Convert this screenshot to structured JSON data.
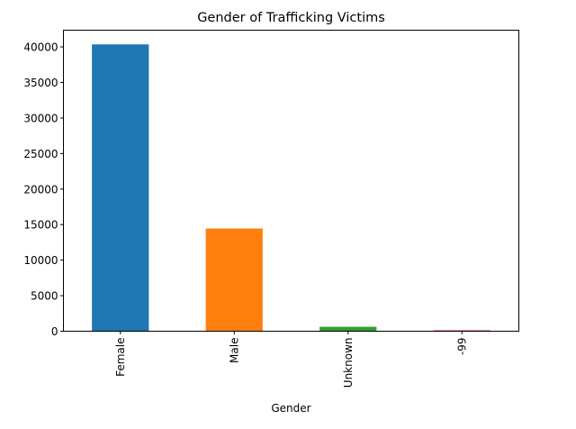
{
  "chart_data": {
    "type": "bar",
    "title": "Gender of Trafficking Victims",
    "xlabel": "Gender",
    "ylabel": "",
    "categories": [
      "Female",
      "Male",
      "Unknown",
      "-99"
    ],
    "values": [
      40350,
      14450,
      620,
      130
    ],
    "ylim": [
      0,
      42350
    ],
    "yticks": [
      0,
      5000,
      10000,
      15000,
      20000,
      25000,
      30000,
      35000,
      40000
    ],
    "bar_colors": [
      "#1f77b4",
      "#ff7f0e",
      "#2ca02c",
      "#d62728"
    ],
    "grid": false,
    "legend": false
  }
}
